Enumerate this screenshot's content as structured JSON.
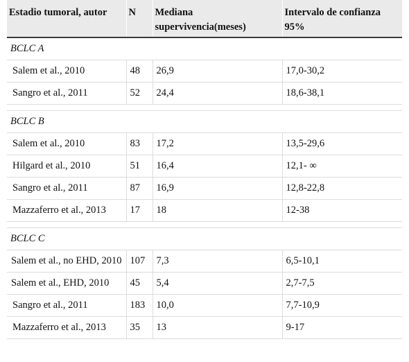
{
  "headers": [
    "Estadio tumoral, autor",
    "N",
    "Mediana supervivencia(meses)",
    "Intervalo de confianza 95%"
  ],
  "groups": [
    {
      "label": "BCLC A",
      "rows": [
        [
          "Salem et al., 2010",
          "48",
          "26,9",
          "17,0-30,2"
        ],
        [
          "Sangro et al., 2011",
          "52",
          "24,4",
          "18,6-38,1"
        ]
      ]
    },
    {
      "label": "BCLC B",
      "rows": [
        [
          "Salem et al., 2010",
          "83",
          "17,2",
          "13,5-29,6"
        ],
        [
          "Hilgard et al., 2010",
          "51",
          "16,4",
          "12,1- ∞"
        ],
        [
          "Sangro et al., 2011",
          "87",
          "16,9",
          "12,8-22,8"
        ],
        [
          "Mazzaferro et al., 2013",
          "17",
          "18",
          "12-38"
        ]
      ]
    },
    {
      "label": "BCLC C",
      "rows": [
        [
          "Salem et al., no EHD, 2010",
          "107",
          "7,3",
          "6,5-10,1"
        ],
        [
          "Salem et al., EHD, 2010",
          "45",
          "5,4",
          "2,7-7,5"
        ],
        [
          "Sangro et al., 2011",
          "183",
          "10,0",
          "7,7-10,9"
        ],
        [
          "Mazzaferro et al., 2013",
          "35",
          "13",
          "9-17"
        ]
      ]
    }
  ]
}
